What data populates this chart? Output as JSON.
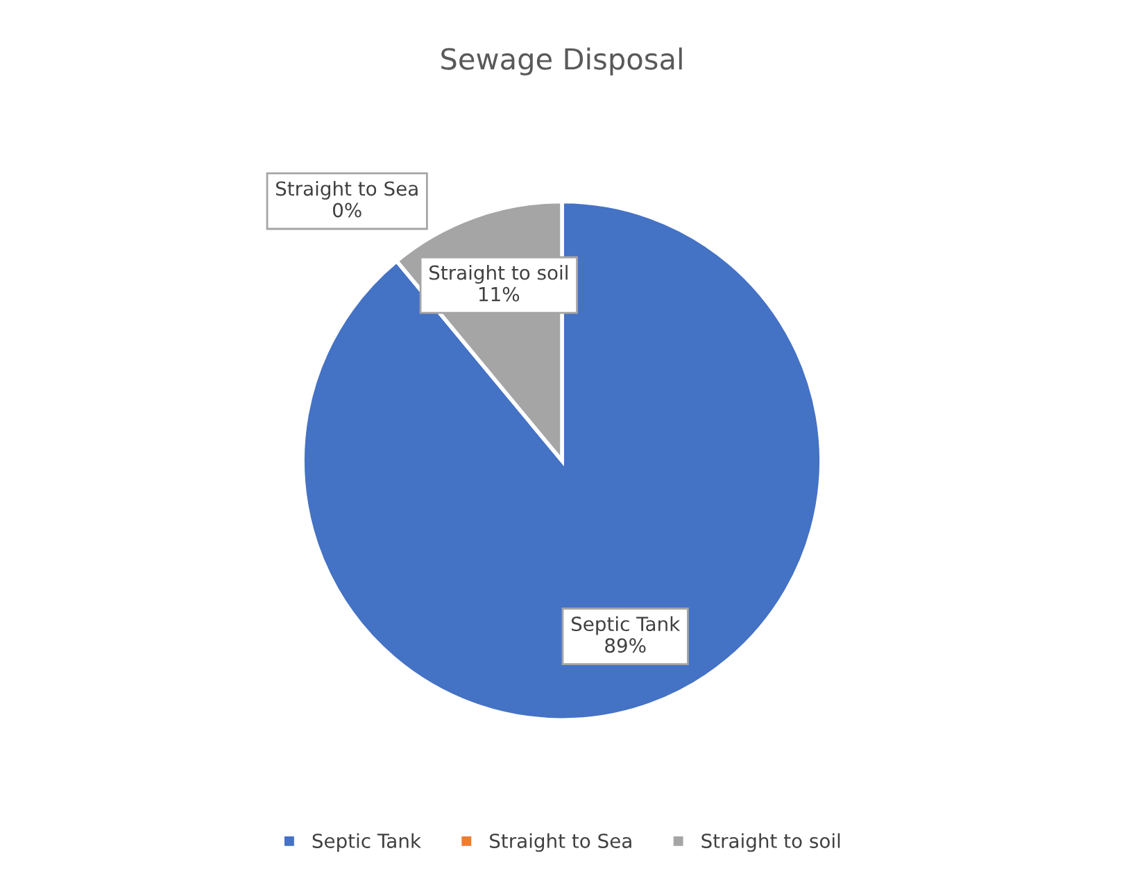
{
  "chart_data": {
    "type": "pie",
    "title": "Sewage Disposal",
    "categories": [
      "Septic Tank",
      "Straight to Sea",
      "Straight to soil"
    ],
    "values": [
      89,
      0,
      11
    ],
    "value_labels": [
      "89%",
      "0%",
      "11%"
    ],
    "colors": [
      "#4472c4",
      "#ed7d31",
      "#a5a5a5"
    ],
    "legend": "bottom"
  }
}
